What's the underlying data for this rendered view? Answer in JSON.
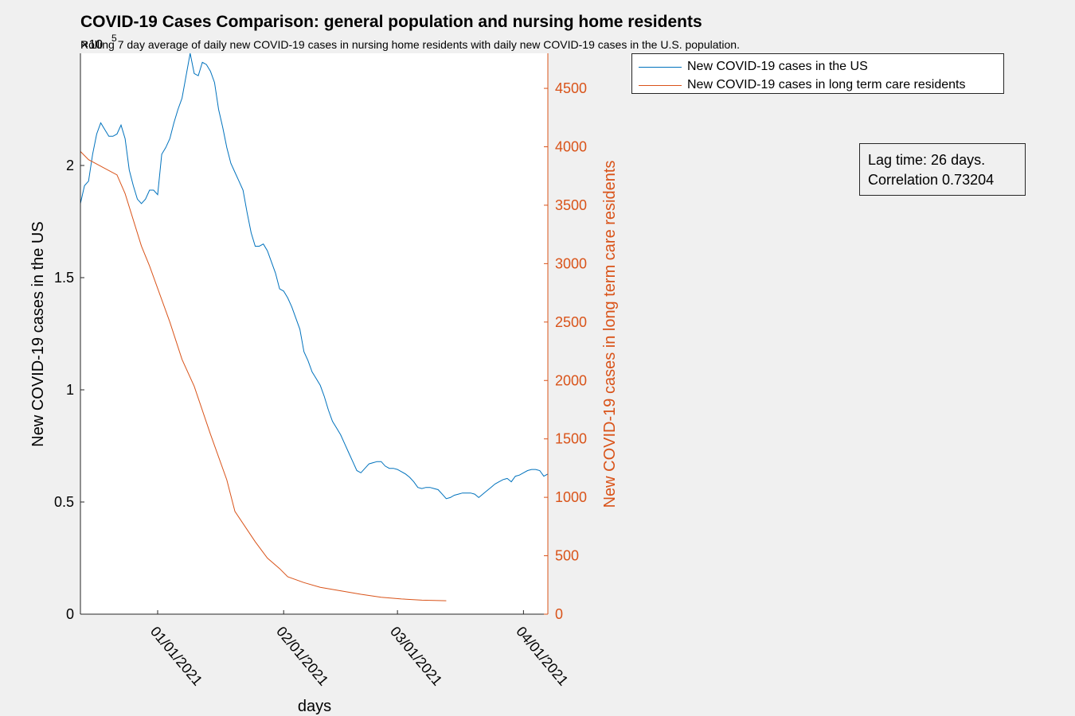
{
  "chart_data": {
    "type": "line",
    "title": "COVID-19 Cases Comparison: general population and nursing home residents",
    "subtitle": "Rolling 7 day average of daily new COVID-19 cases in nursing home residents with daily new COVID-19 cases in the U.S. population.",
    "xlabel": "days",
    "ylabel_left": "New COVID-19 cases in the US",
    "ylabel_right": "New COVID-19 cases in long term care residents",
    "left_exponent": "5",
    "x_start": "2020-12-13",
    "x_end": "2021-04-07",
    "x_ticks": [
      {
        "date": "2021-01-01",
        "label": "01/01/2021"
      },
      {
        "date": "2021-02-01",
        "label": "02/01/2021"
      },
      {
        "date": "2021-03-01",
        "label": "03/01/2021"
      },
      {
        "date": "2021-04-01",
        "label": "04/01/2021"
      }
    ],
    "ylim_left": [
      0,
      2.5
    ],
    "yticks_left": [
      0,
      0.5,
      1,
      1.5,
      2
    ],
    "ylim_right": [
      0,
      4800
    ],
    "yticks_right": [
      0,
      500,
      1000,
      1500,
      2000,
      2500,
      3000,
      3500,
      4000,
      4500
    ],
    "grid": false,
    "legend_position": "outside top-right",
    "colors": {
      "us": "#0072BD",
      "ltc": "#D95319",
      "axis": "#262626"
    },
    "series": [
      {
        "name": "New COVID-19 cases in the US",
        "axis": "left",
        "color": "#0072BD",
        "points": [
          [
            "2020-12-13",
            1.83
          ],
          [
            "2020-12-14",
            1.91
          ],
          [
            "2020-12-15",
            1.93
          ],
          [
            "2020-12-16",
            2.05
          ],
          [
            "2020-12-17",
            2.14
          ],
          [
            "2020-12-18",
            2.19
          ],
          [
            "2020-12-19",
            2.16
          ],
          [
            "2020-12-20",
            2.13
          ],
          [
            "2020-12-21",
            2.13
          ],
          [
            "2020-12-22",
            2.14
          ],
          [
            "2020-12-23",
            2.18
          ],
          [
            "2020-12-24",
            2.12
          ],
          [
            "2020-12-25",
            1.98
          ],
          [
            "2020-12-26",
            1.91
          ],
          [
            "2020-12-27",
            1.85
          ],
          [
            "2020-12-28",
            1.83
          ],
          [
            "2020-12-29",
            1.85
          ],
          [
            "2020-12-30",
            1.89
          ],
          [
            "2020-12-31",
            1.89
          ],
          [
            "2021-01-01",
            1.87
          ],
          [
            "2021-01-02",
            2.05
          ],
          [
            "2021-01-03",
            2.08
          ],
          [
            "2021-01-04",
            2.12
          ],
          [
            "2021-01-05",
            2.19
          ],
          [
            "2021-01-06",
            2.25
          ],
          [
            "2021-01-07",
            2.3
          ],
          [
            "2021-01-08",
            2.4
          ],
          [
            "2021-01-09",
            2.5
          ],
          [
            "2021-01-10",
            2.41
          ],
          [
            "2021-01-11",
            2.4
          ],
          [
            "2021-01-12",
            2.46
          ],
          [
            "2021-01-13",
            2.45
          ],
          [
            "2021-01-14",
            2.42
          ],
          [
            "2021-01-15",
            2.37
          ],
          [
            "2021-01-16",
            2.25
          ],
          [
            "2021-01-17",
            2.17
          ],
          [
            "2021-01-18",
            2.08
          ],
          [
            "2021-01-19",
            2.01
          ],
          [
            "2021-01-20",
            1.97
          ],
          [
            "2021-01-21",
            1.93
          ],
          [
            "2021-01-22",
            1.89
          ],
          [
            "2021-01-23",
            1.79
          ],
          [
            "2021-01-24",
            1.7
          ],
          [
            "2021-01-25",
            1.64
          ],
          [
            "2021-01-26",
            1.64
          ],
          [
            "2021-01-27",
            1.65
          ],
          [
            "2021-01-28",
            1.62
          ],
          [
            "2021-01-29",
            1.57
          ],
          [
            "2021-01-30",
            1.52
          ],
          [
            "2021-01-31",
            1.45
          ],
          [
            "2021-02-01",
            1.44
          ],
          [
            "2021-02-02",
            1.41
          ],
          [
            "2021-02-03",
            1.37
          ],
          [
            "2021-02-04",
            1.32
          ],
          [
            "2021-02-05",
            1.27
          ],
          [
            "2021-02-06",
            1.17
          ],
          [
            "2021-02-07",
            1.13
          ],
          [
            "2021-02-08",
            1.08
          ],
          [
            "2021-02-09",
            1.05
          ],
          [
            "2021-02-10",
            1.02
          ],
          [
            "2021-02-11",
            0.97
          ],
          [
            "2021-02-12",
            0.91
          ],
          [
            "2021-02-13",
            0.86
          ],
          [
            "2021-02-14",
            0.83
          ],
          [
            "2021-02-15",
            0.8
          ],
          [
            "2021-02-16",
            0.76
          ],
          [
            "2021-02-17",
            0.72
          ],
          [
            "2021-02-18",
            0.68
          ],
          [
            "2021-02-19",
            0.64
          ],
          [
            "2021-02-20",
            0.63
          ],
          [
            "2021-02-21",
            0.65
          ],
          [
            "2021-02-22",
            0.67
          ],
          [
            "2021-02-23",
            0.675
          ],
          [
            "2021-02-24",
            0.68
          ],
          [
            "2021-02-25",
            0.68
          ],
          [
            "2021-02-26",
            0.66
          ],
          [
            "2021-02-27",
            0.65
          ],
          [
            "2021-02-28",
            0.65
          ],
          [
            "2021-03-01",
            0.645
          ],
          [
            "2021-03-02",
            0.635
          ],
          [
            "2021-03-03",
            0.625
          ],
          [
            "2021-03-04",
            0.61
          ],
          [
            "2021-03-05",
            0.59
          ],
          [
            "2021-03-06",
            0.565
          ],
          [
            "2021-03-07",
            0.56
          ],
          [
            "2021-03-08",
            0.565
          ],
          [
            "2021-03-09",
            0.565
          ],
          [
            "2021-03-10",
            0.56
          ],
          [
            "2021-03-11",
            0.555
          ],
          [
            "2021-03-12",
            0.535
          ],
          [
            "2021-03-13",
            0.515
          ],
          [
            "2021-03-14",
            0.52
          ],
          [
            "2021-03-15",
            0.53
          ],
          [
            "2021-03-16",
            0.535
          ],
          [
            "2021-03-17",
            0.54
          ],
          [
            "2021-03-18",
            0.54
          ],
          [
            "2021-03-19",
            0.54
          ],
          [
            "2021-03-20",
            0.535
          ],
          [
            "2021-03-21",
            0.52
          ],
          [
            "2021-03-22",
            0.535
          ],
          [
            "2021-03-23",
            0.55
          ],
          [
            "2021-03-24",
            0.565
          ],
          [
            "2021-03-25",
            0.58
          ],
          [
            "2021-03-26",
            0.59
          ],
          [
            "2021-03-27",
            0.6
          ],
          [
            "2021-03-28",
            0.605
          ],
          [
            "2021-03-29",
            0.59
          ],
          [
            "2021-03-30",
            0.615
          ],
          [
            "2021-03-31",
            0.62
          ],
          [
            "2021-04-01",
            0.63
          ],
          [
            "2021-04-02",
            0.64
          ],
          [
            "2021-04-03",
            0.645
          ],
          [
            "2021-04-04",
            0.645
          ],
          [
            "2021-04-05",
            0.64
          ],
          [
            "2021-04-06",
            0.615
          ],
          [
            "2021-04-07",
            0.625
          ]
        ]
      },
      {
        "name": "New COVID-19 cases in long term care residents",
        "axis": "right",
        "color": "#D95319",
        "points": [
          [
            "2020-12-13",
            3960
          ],
          [
            "2020-12-15",
            3890
          ],
          [
            "2020-12-22",
            3760
          ],
          [
            "2020-12-24",
            3600
          ],
          [
            "2020-12-28",
            3150
          ],
          [
            "2020-12-30",
            2980
          ],
          [
            "2021-01-04",
            2500
          ],
          [
            "2021-01-07",
            2180
          ],
          [
            "2021-01-10",
            1950
          ],
          [
            "2021-01-14",
            1540
          ],
          [
            "2021-01-18",
            1150
          ],
          [
            "2021-01-20",
            880
          ],
          [
            "2021-01-25",
            620
          ],
          [
            "2021-01-28",
            480
          ],
          [
            "2021-01-31",
            390
          ],
          [
            "2021-02-02",
            320
          ],
          [
            "2021-02-06",
            270
          ],
          [
            "2021-02-10",
            230
          ],
          [
            "2021-02-15",
            200
          ],
          [
            "2021-02-20",
            170
          ],
          [
            "2021-02-25",
            145
          ],
          [
            "2021-03-02",
            130
          ],
          [
            "2021-03-07",
            120
          ],
          [
            "2021-03-13",
            115
          ]
        ]
      }
    ]
  },
  "annotation": {
    "line1": "Lag time: 26 days.",
    "line2": "Correlation 0.73204"
  }
}
